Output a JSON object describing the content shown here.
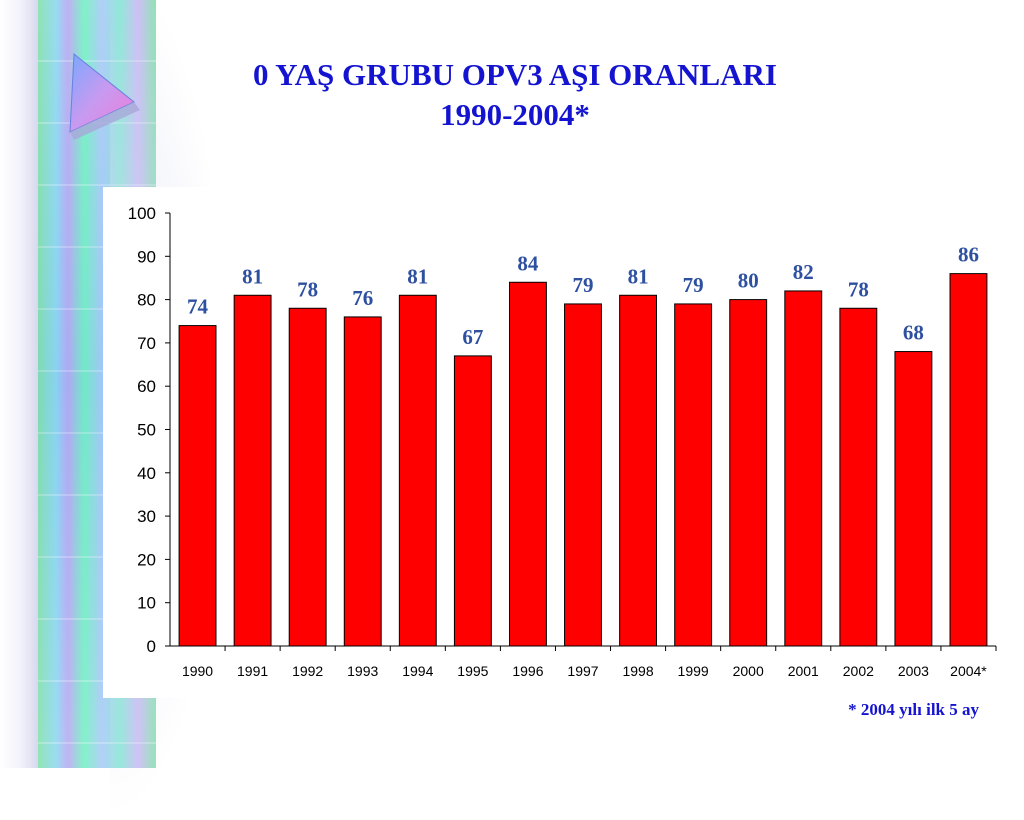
{
  "title_line1": "0 YAŞ GRUBU OPV3 AŞI ORANLARI",
  "title_line2": "1990-2004*",
  "footnote": "* 2004 yılı ilk 5 ay",
  "colors": {
    "bar": "#ff0000",
    "value_label": "#2e50a0",
    "title": "#1414d0"
  },
  "chart_data": {
    "type": "bar",
    "categories": [
      "1990",
      "1991",
      "1992",
      "1993",
      "1994",
      "1995",
      "1996",
      "1997",
      "1998",
      "1999",
      "2000",
      "2001",
      "2002",
      "2003",
      "2004*"
    ],
    "values": [
      74,
      81,
      78,
      76,
      81,
      67,
      84,
      79,
      81,
      79,
      80,
      82,
      78,
      68,
      86
    ],
    "yticks": [
      "0",
      "10",
      "20",
      "30",
      "40",
      "50",
      "60",
      "70",
      "80",
      "90",
      "100"
    ],
    "ylim": [
      0,
      100
    ],
    "title": "0 YAŞ GRUBU OPV3 AŞI ORANLARI 1990-2004*",
    "xlabel": "",
    "ylabel": "",
    "grid": false,
    "legend": "none"
  }
}
